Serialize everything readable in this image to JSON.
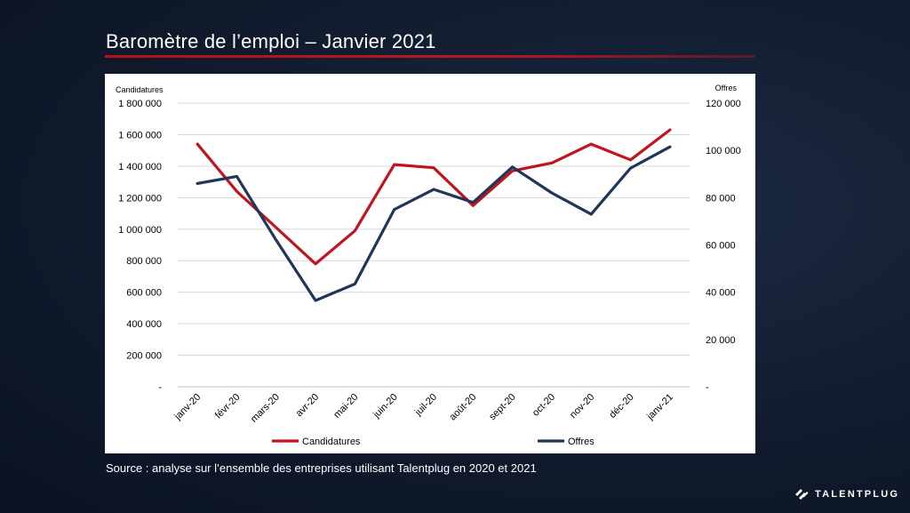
{
  "slide": {
    "title": "Baromètre de l’emploi – Janvier 2021",
    "source": "Source : analyse sur l’ensemble des entreprises utilisant Talentplug en 2020 et 2021",
    "brand": "TALENTPLUG"
  },
  "colors": {
    "candidatures": "#c0141e",
    "offres": "#1f3658",
    "grid": "#d9d9d9",
    "accent": "#b5121b"
  },
  "chart_data": {
    "type": "line",
    "categories": [
      "janv-20",
      "févr-20",
      "mars-20",
      "avr-20",
      "mai-20",
      "juin-20",
      "juil-20",
      "août-20",
      "sept-20",
      "oct-20",
      "nov-20",
      "déc-20",
      "janv-21"
    ],
    "series": [
      {
        "name": "Candidatures",
        "axis": "left",
        "values": [
          1540000,
          1240000,
          1010000,
          780000,
          990000,
          1410000,
          1390000,
          1150000,
          1370000,
          1420000,
          1540000,
          1440000,
          1630000
        ]
      },
      {
        "name": "Offres",
        "axis": "right",
        "values": [
          86000,
          89000,
          62000,
          36500,
          43500,
          75000,
          83500,
          78000,
          93000,
          82000,
          73000,
          92500,
          101500
        ]
      }
    ],
    "y_left": {
      "label": "Candidatures",
      "range": [
        0,
        1800000
      ],
      "ticks": [
        0,
        200000,
        400000,
        600000,
        800000,
        1000000,
        1200000,
        1400000,
        1600000,
        1800000
      ],
      "tick_labels": [
        "-",
        "200 000",
        "400 000",
        "600 000",
        "800 000",
        "1 000 000",
        "1 200 000",
        "1 400 000",
        "1 600 000",
        "1 800 000"
      ]
    },
    "y_right": {
      "label": "Offres",
      "range": [
        0,
        120000
      ],
      "ticks": [
        0,
        20000,
        40000,
        60000,
        80000,
        100000,
        120000
      ],
      "tick_labels": [
        "-",
        "20 000",
        "40 000",
        "60 000",
        "80 000",
        "100 000",
        "120 000"
      ]
    },
    "grid": true,
    "legend": {
      "position": "bottom",
      "entries": [
        "Candidatures",
        "Offres"
      ]
    }
  }
}
